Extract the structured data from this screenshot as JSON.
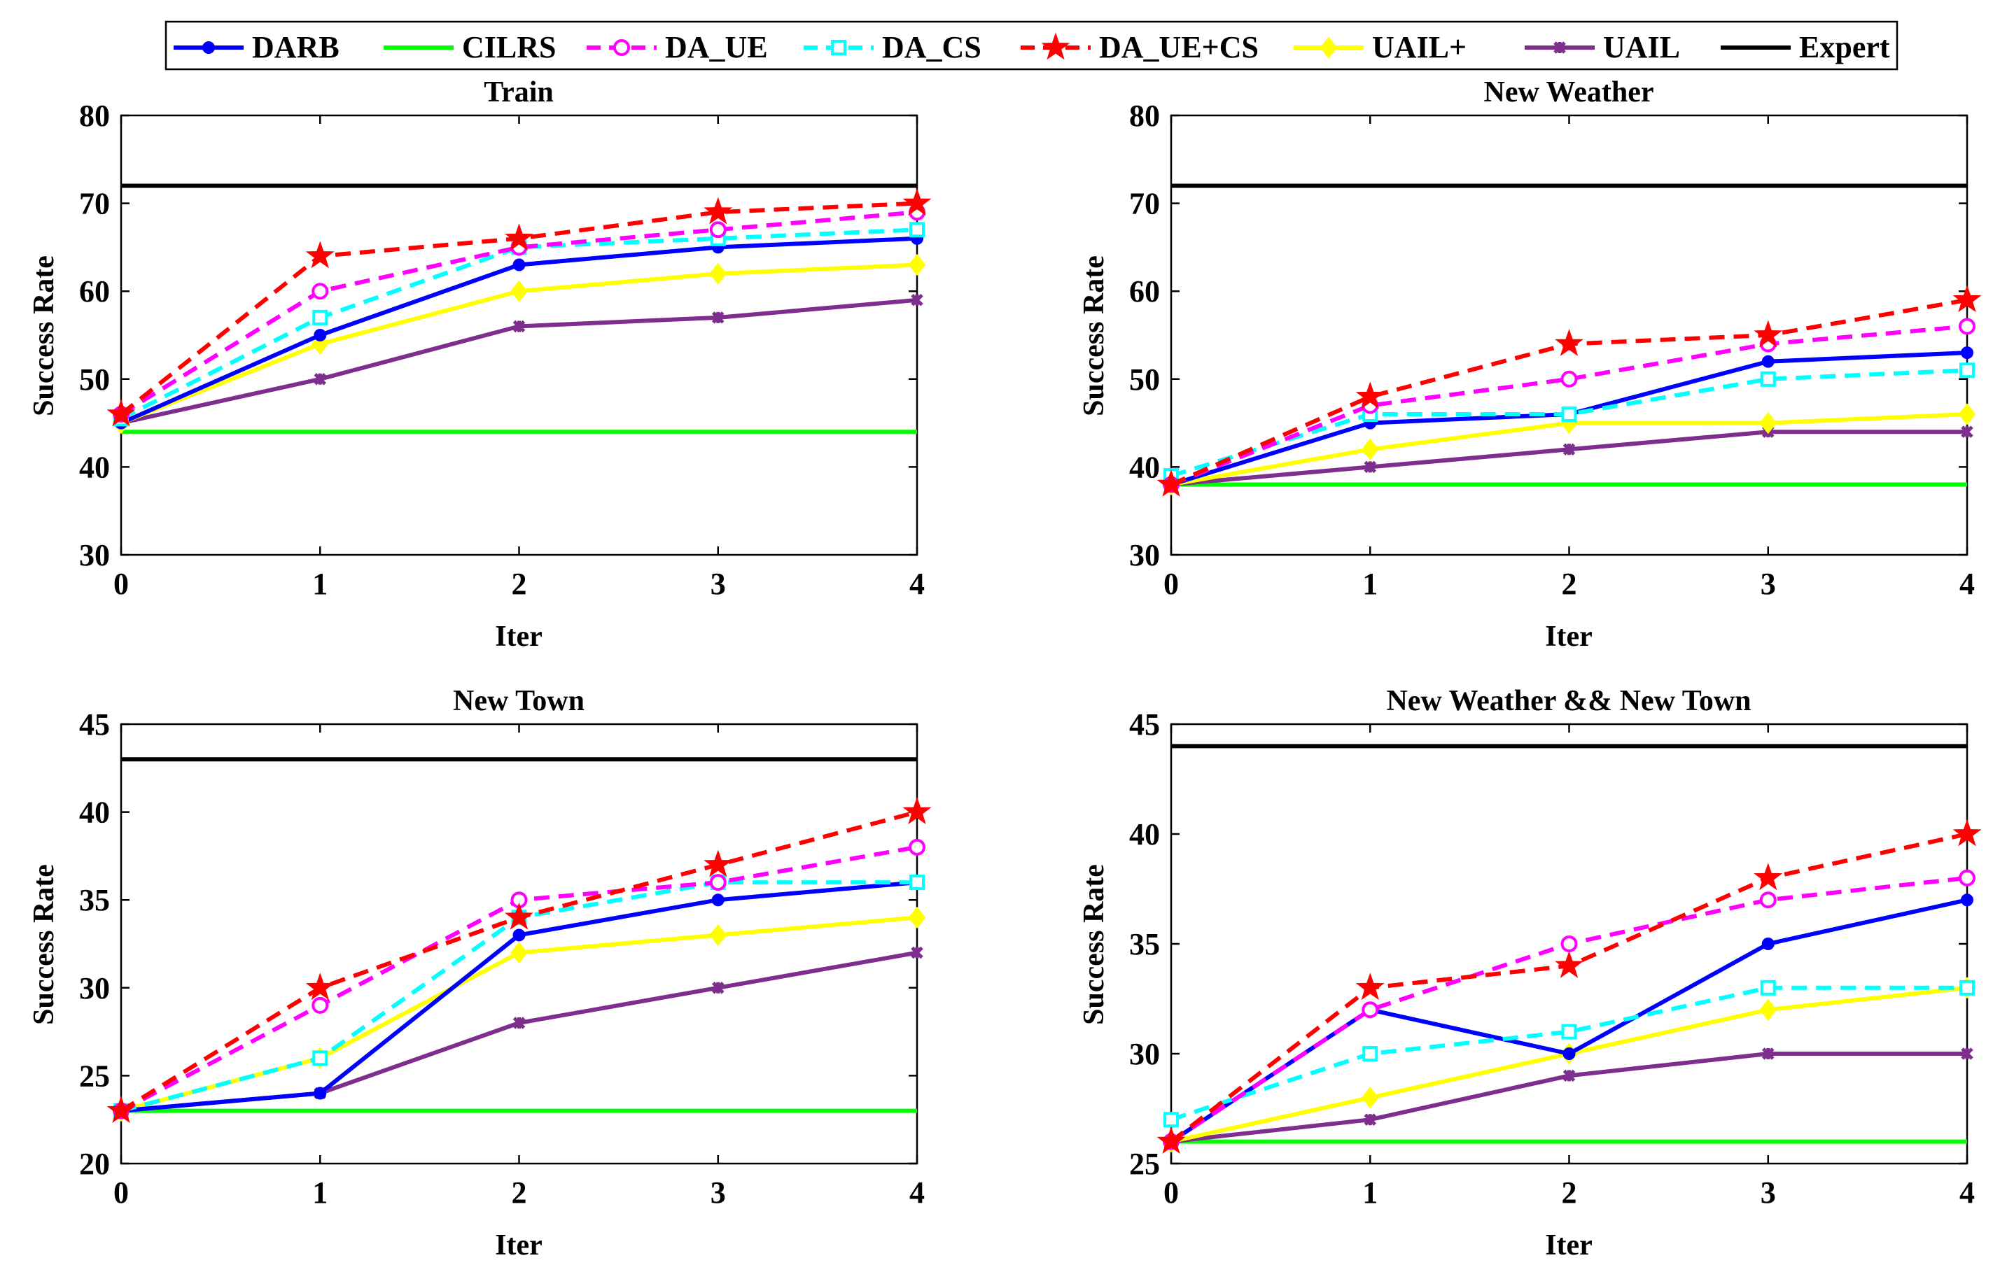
{
  "legend": [
    {
      "key": "DARB",
      "label": "DARB",
      "color": "#0000ff",
      "dash": "solid",
      "marker": "dot"
    },
    {
      "key": "CILRS",
      "label": "CILRS",
      "color": "#00ff00",
      "dash": "solid",
      "marker": "none"
    },
    {
      "key": "DA_UE",
      "label": "DA_UE",
      "color": "#ff00ff",
      "dash": "dashed",
      "marker": "circle"
    },
    {
      "key": "DA_CS",
      "label": "DA_CS",
      "color": "#00ffff",
      "dash": "dashed",
      "marker": "square"
    },
    {
      "key": "DA_UE+CS",
      "label": "DA_UE+CS",
      "color": "#ff0000",
      "dash": "dashed",
      "marker": "star"
    },
    {
      "key": "UAIL+",
      "label": "UAIL+",
      "color": "#ffff00",
      "dash": "solid",
      "marker": "diamond"
    },
    {
      "key": "UAIL",
      "label": "UAIL",
      "color": "#7e2f8e",
      "dash": "solid",
      "marker": "x"
    },
    {
      "key": "Expert",
      "label": "Expert",
      "color": "#000000",
      "dash": "solid",
      "marker": "none"
    }
  ],
  "chart_data": [
    {
      "type": "line",
      "title": "Train",
      "xlabel": "Iter",
      "ylabel": "Success Rate",
      "x": [
        0,
        1,
        2,
        3,
        4
      ],
      "xticks": [
        "0",
        "1",
        "2",
        "3",
        "4"
      ],
      "ylim": [
        30,
        80
      ],
      "yticks": [
        "30",
        "40",
        "50",
        "60",
        "70",
        "80"
      ],
      "series": [
        {
          "name": "Expert",
          "values": [
            72,
            72,
            72,
            72,
            72
          ]
        },
        {
          "name": "CILRS",
          "values": [
            44,
            44,
            44,
            44,
            44
          ]
        },
        {
          "name": "UAIL",
          "values": [
            45,
            50,
            56,
            57,
            59
          ]
        },
        {
          "name": "UAIL+",
          "values": [
            45,
            54,
            60,
            62,
            63
          ]
        },
        {
          "name": "DARB",
          "values": [
            45,
            55,
            63,
            65,
            66
          ]
        },
        {
          "name": "DA_CS",
          "values": [
            45.5,
            57,
            65,
            66,
            67
          ]
        },
        {
          "name": "DA_UE",
          "values": [
            46,
            60,
            65,
            67,
            69
          ]
        },
        {
          "name": "DA_UE+CS",
          "values": [
            46,
            64,
            66,
            69,
            70
          ]
        }
      ]
    },
    {
      "type": "line",
      "title": "New Weather",
      "xlabel": "Iter",
      "ylabel": "Success Rate",
      "x": [
        0,
        1,
        2,
        3,
        4
      ],
      "xticks": [
        "0",
        "1",
        "2",
        "3",
        "4"
      ],
      "ylim": [
        30,
        80
      ],
      "yticks": [
        "30",
        "40",
        "50",
        "60",
        "70",
        "80"
      ],
      "series": [
        {
          "name": "Expert",
          "values": [
            72,
            72,
            72,
            72,
            72
          ]
        },
        {
          "name": "CILRS",
          "values": [
            38,
            38,
            38,
            38,
            38
          ]
        },
        {
          "name": "UAIL",
          "values": [
            38,
            40,
            42,
            44,
            44
          ]
        },
        {
          "name": "UAIL+",
          "values": [
            38,
            42,
            45,
            45,
            46
          ]
        },
        {
          "name": "DARB",
          "values": [
            38,
            45,
            46,
            52,
            53
          ]
        },
        {
          "name": "DA_CS",
          "values": [
            39,
            46,
            46,
            50,
            51
          ]
        },
        {
          "name": "DA_UE",
          "values": [
            38,
            47,
            50,
            54,
            56
          ]
        },
        {
          "name": "DA_UE+CS",
          "values": [
            38,
            48,
            54,
            55,
            59
          ]
        }
      ]
    },
    {
      "type": "line",
      "title": "New Town",
      "xlabel": "Iter",
      "ylabel": "Success Rate",
      "x": [
        0,
        1,
        2,
        3,
        4
      ],
      "xticks": [
        "0",
        "1",
        "2",
        "3",
        "4"
      ],
      "ylim": [
        20,
        45
      ],
      "yticks": [
        "20",
        "25",
        "30",
        "35",
        "40",
        "45"
      ],
      "series": [
        {
          "name": "Expert",
          "values": [
            43,
            43,
            43,
            43,
            43
          ]
        },
        {
          "name": "CILRS",
          "values": [
            23,
            23,
            23,
            23,
            23
          ]
        },
        {
          "name": "UAIL",
          "values": [
            23,
            24,
            28,
            30,
            32
          ]
        },
        {
          "name": "UAIL+",
          "values": [
            23,
            26,
            32,
            33,
            34
          ]
        },
        {
          "name": "DARB",
          "values": [
            23,
            24,
            33,
            35,
            36
          ]
        },
        {
          "name": "DA_CS",
          "values": [
            23,
            26,
            34,
            36,
            36
          ]
        },
        {
          "name": "DA_UE",
          "values": [
            23,
            29,
            35,
            36,
            38
          ]
        },
        {
          "name": "DA_UE+CS",
          "values": [
            23,
            30,
            34,
            37,
            40
          ]
        }
      ]
    },
    {
      "type": "line",
      "title": "New Weather && New Town",
      "xlabel": "Iter",
      "ylabel": "Success Rate",
      "x": [
        0,
        1,
        2,
        3,
        4
      ],
      "xticks": [
        "0",
        "1",
        "2",
        "3",
        "4"
      ],
      "ylim": [
        25,
        45
      ],
      "yticks": [
        "25",
        "30",
        "35",
        "40",
        "45"
      ],
      "series": [
        {
          "name": "Expert",
          "values": [
            44,
            44,
            44,
            44,
            44
          ]
        },
        {
          "name": "CILRS",
          "values": [
            26,
            26,
            26,
            26,
            26
          ]
        },
        {
          "name": "UAIL",
          "values": [
            26,
            27,
            29,
            30,
            30
          ]
        },
        {
          "name": "UAIL+",
          "values": [
            26,
            28,
            30,
            32,
            33
          ]
        },
        {
          "name": "DARB",
          "values": [
            26,
            32,
            30,
            35,
            37
          ]
        },
        {
          "name": "DA_CS",
          "values": [
            27,
            30,
            31,
            33,
            33
          ]
        },
        {
          "name": "DA_UE",
          "values": [
            26,
            32,
            35,
            37,
            38
          ]
        },
        {
          "name": "DA_UE+CS",
          "values": [
            26,
            33,
            34,
            38,
            40
          ]
        }
      ]
    }
  ]
}
